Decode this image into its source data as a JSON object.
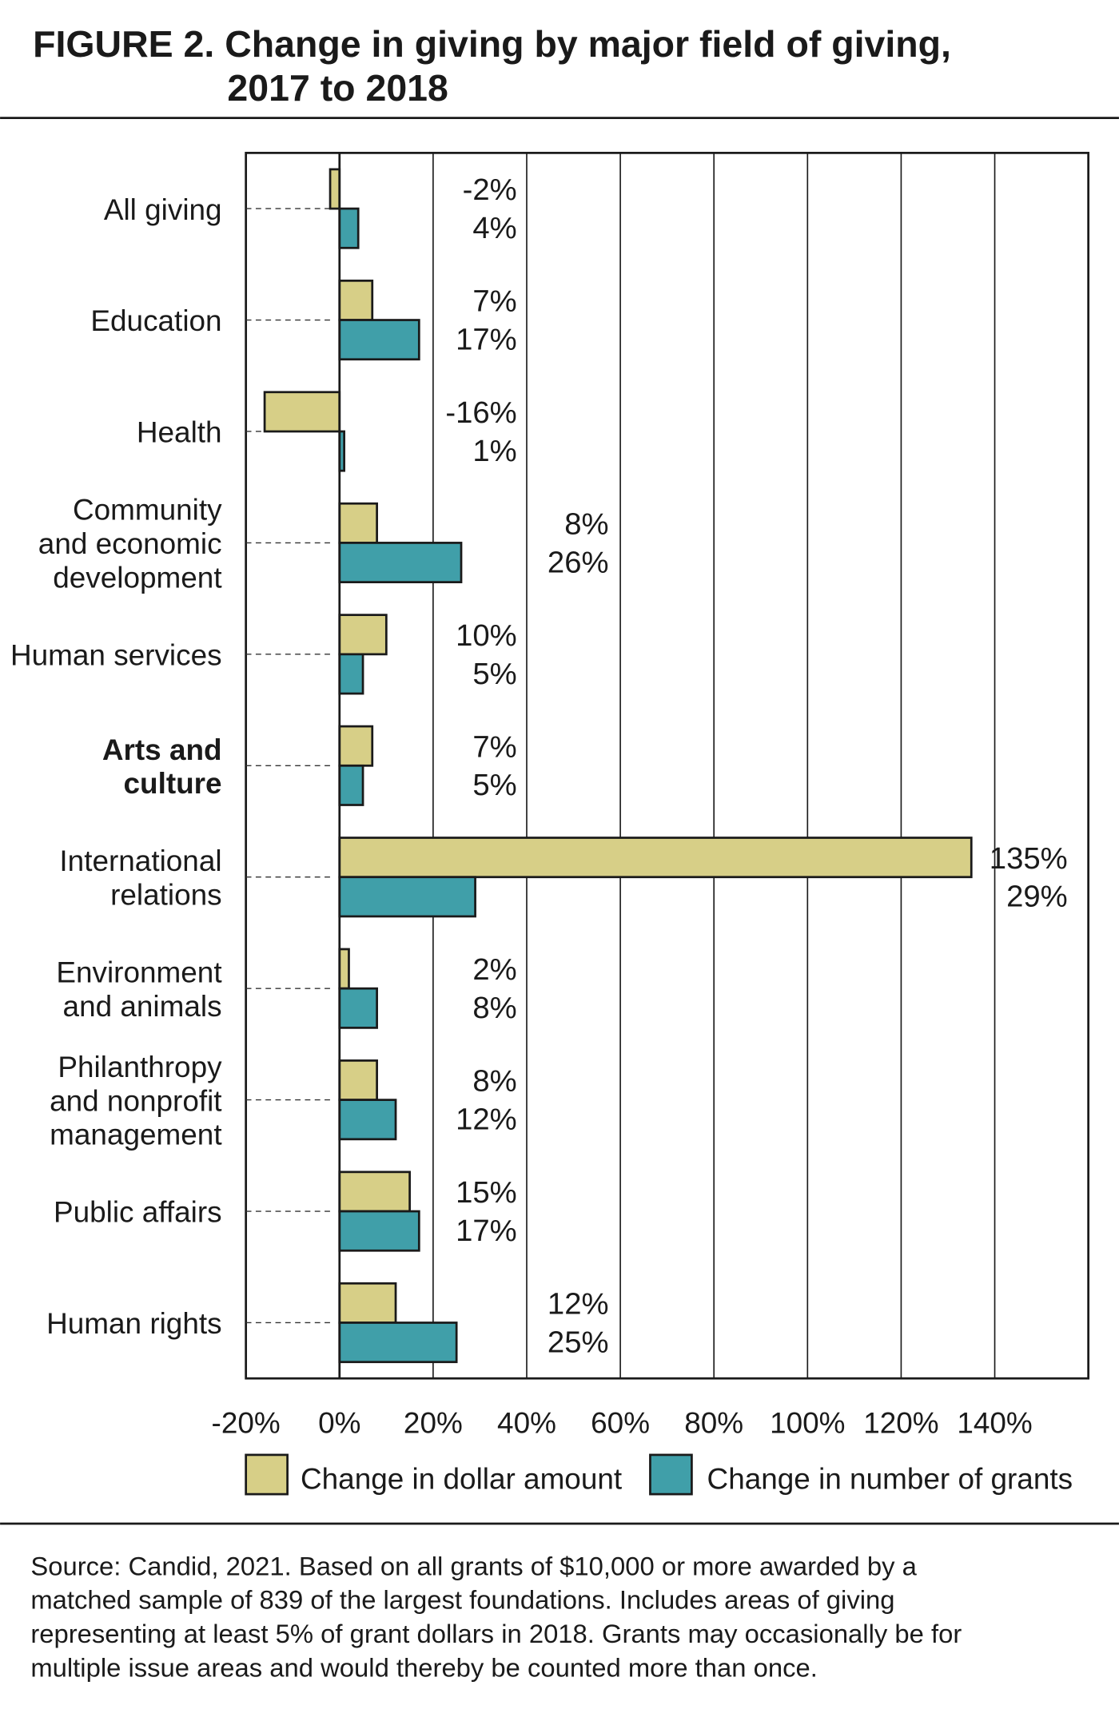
{
  "chart_data": {
    "type": "hbar",
    "title_lines": [
      "FIGURE 2. Change in giving by major field of giving,",
      "2017 to 2018"
    ],
    "categories": [
      "All giving",
      "Education",
      "Health",
      "Community\nand economic\ndevelopment",
      "Human services",
      "Arts and\nculture",
      "International\nrelations",
      "Environment\nand animals",
      "Philanthropy\nand nonprofit\nmanagement",
      "Public affairs",
      "Human rights"
    ],
    "bold": [
      false,
      false,
      false,
      false,
      false,
      true,
      false,
      false,
      false,
      false,
      false
    ],
    "series": [
      {
        "name": "Change in dollar amount",
        "color": "#d7cf87",
        "values": [
          -2,
          7,
          -16,
          8,
          10,
          7,
          135,
          2,
          8,
          15,
          12
        ],
        "value_labels": [
          "-2%",
          "7%",
          "-16%",
          "8%",
          "10%",
          "7%",
          "135%",
          "2%",
          "8%",
          "15%",
          "12%"
        ]
      },
      {
        "name": "Change in number of grants",
        "color": "#409fa9",
        "values": [
          4,
          17,
          1,
          26,
          5,
          5,
          29,
          8,
          12,
          17,
          25
        ],
        "value_labels": [
          "4%",
          "17%",
          "1%",
          "26%",
          "5%",
          "5%",
          "29%",
          "8%",
          "12%",
          "17%",
          "25%"
        ]
      }
    ],
    "xlim": [
      -20,
      160
    ],
    "xticks": [
      {
        "value": -20,
        "label": "-20%"
      },
      {
        "value": 0,
        "label": "0%"
      },
      {
        "value": 20,
        "label": "20%"
      },
      {
        "value": 40,
        "label": "40%"
      },
      {
        "value": 60,
        "label": "60%"
      },
      {
        "value": 80,
        "label": "80%"
      },
      {
        "value": 100,
        "label": "100%"
      },
      {
        "value": 120,
        "label": "120%"
      },
      {
        "value": 140,
        "label": "140%"
      }
    ],
    "grid": true,
    "source_lines": [
      "Source: Candid, 2021. Based on all grants of $10,000 or more awarded by a",
      "matched sample of 839 of the largest foundations.  Includes areas of giving",
      "representing at least 5% of grant dollars in 2018. Grants may occasionally be for",
      "multiple issue areas and would thereby be counted more than once."
    ]
  }
}
